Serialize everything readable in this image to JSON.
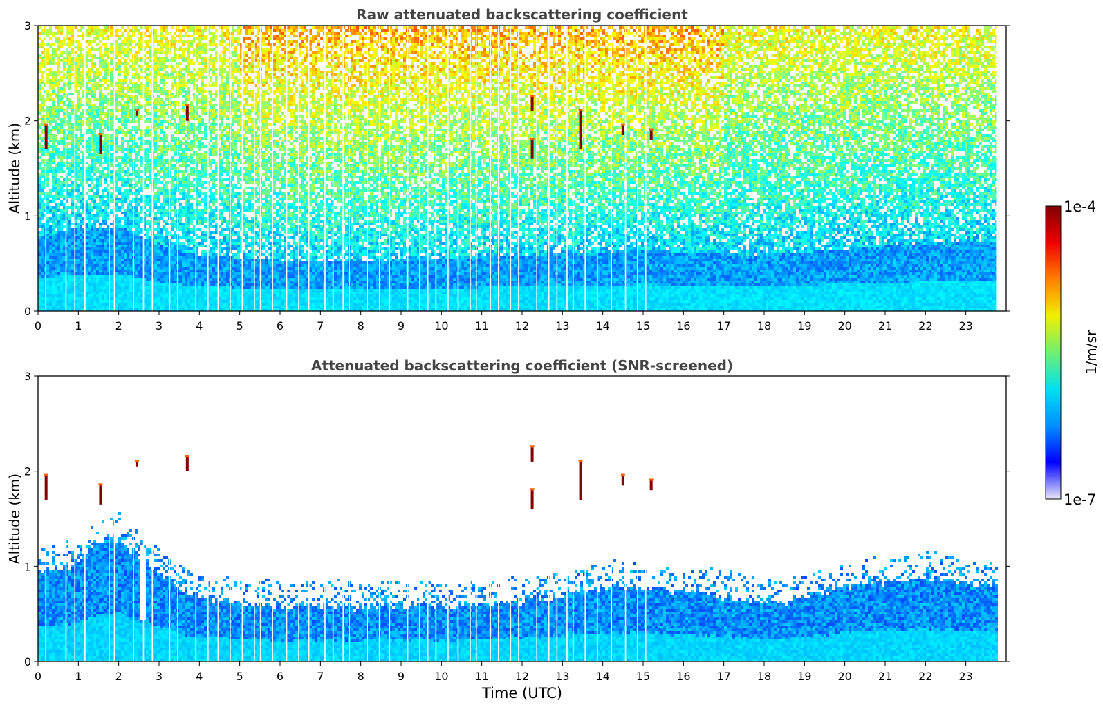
{
  "chart_data": [
    {
      "type": "heatmap",
      "title": "Raw attenuated backscattering coefficient",
      "xlabel": "",
      "ylabel": "Altitude (km)",
      "xlim": [
        0,
        24
      ],
      "ylim": [
        0,
        3
      ],
      "x_ticks": [
        "0",
        "1",
        "2",
        "3",
        "4",
        "5",
        "6",
        "7",
        "8",
        "9",
        "10",
        "11",
        "12",
        "13",
        "14",
        "15",
        "16",
        "17",
        "18",
        "19",
        "20",
        "21",
        "22",
        "23"
      ],
      "y_ticks": [
        "0",
        "1",
        "2",
        "3"
      ],
      "data_end_hour": 23.75,
      "variable": "attenuated backscatter",
      "colormap": "jet",
      "color_scale": "log",
      "color_range": [
        1e-07,
        0.0001
      ],
      "structure": [
        {
          "feature": "boundary layer aerosol",
          "top_km_by_hour": [
            [
              0,
              0.8
            ],
            [
              1,
              0.9
            ],
            [
              2,
              0.9
            ],
            [
              3,
              0.7
            ],
            [
              4,
              0.6
            ],
            [
              6,
              0.55
            ],
            [
              9,
              0.55
            ],
            [
              12,
              0.6
            ],
            [
              15,
              0.65
            ],
            [
              18,
              0.6
            ],
            [
              21,
              0.7
            ],
            [
              23.75,
              0.75
            ]
          ]
        },
        {
          "feature": "noisy background",
          "range_km": [
            1.0,
            3.0
          ]
        }
      ],
      "cloud_features": [
        {
          "time_h": 0.2,
          "alt_km": [
            1.7,
            1.95
          ]
        },
        {
          "time_h": 1.55,
          "alt_km": [
            1.65,
            1.85
          ]
        },
        {
          "time_h": 2.45,
          "alt_km": [
            2.05,
            2.1
          ]
        },
        {
          "time_h": 3.7,
          "alt_km": [
            2.0,
            2.15
          ]
        },
        {
          "time_h": 12.25,
          "alt_km": [
            1.6,
            1.8
          ]
        },
        {
          "time_h": 12.25,
          "alt_km": [
            2.1,
            2.25
          ]
        },
        {
          "time_h": 13.45,
          "alt_km": [
            1.7,
            2.1
          ]
        },
        {
          "time_h": 14.5,
          "alt_km": [
            1.85,
            1.95
          ]
        },
        {
          "time_h": 15.2,
          "alt_km": [
            1.8,
            1.9
          ]
        }
      ],
      "missing_profiles_h": [
        0.18,
        0.68,
        0.9,
        1.15,
        1.75,
        1.88,
        2.35,
        2.6,
        2.82,
        3.25,
        3.45,
        3.9,
        4.2,
        4.45,
        4.75,
        5.05,
        5.35,
        5.5,
        5.8,
        6.15,
        6.45,
        6.7,
        7.1,
        7.3,
        7.55,
        7.7,
        8.15,
        8.45,
        8.7,
        9.15,
        9.45,
        9.65,
        9.85,
        10.15,
        10.4,
        10.7,
        10.85,
        11.2,
        11.4,
        11.7,
        11.9,
        12.35,
        12.65,
        12.85,
        13.1,
        13.25,
        13.55,
        13.85,
        14.2,
        14.55,
        14.85,
        15.05
      ]
    },
    {
      "type": "heatmap",
      "title": "Attenuated backscattering coefficient (SNR-screened)",
      "xlabel": "Time (UTC)",
      "ylabel": "Altitude (km)",
      "xlim": [
        0,
        24
      ],
      "ylim": [
        0,
        3
      ],
      "x_ticks": [
        "0",
        "1",
        "2",
        "3",
        "4",
        "5",
        "6",
        "7",
        "8",
        "9",
        "10",
        "11",
        "12",
        "13",
        "14",
        "15",
        "16",
        "17",
        "18",
        "19",
        "20",
        "21",
        "22",
        "23"
      ],
      "y_ticks": [
        "0",
        "1",
        "2",
        "3"
      ],
      "colormap": "jet",
      "color_scale": "log",
      "color_range": [
        1e-07,
        0.0001
      ],
      "screened_layer_top_km_by_hour": [
        [
          0,
          0.95
        ],
        [
          0.5,
          1.0
        ],
        [
          1,
          1.05
        ],
        [
          1.5,
          1.25
        ],
        [
          2,
          1.3
        ],
        [
          2.5,
          1.1
        ],
        [
          3,
          0.95
        ],
        [
          3.5,
          0.75
        ],
        [
          4,
          0.7
        ],
        [
          5,
          0.62
        ],
        [
          6,
          0.6
        ],
        [
          7,
          0.6
        ],
        [
          8,
          0.58
        ],
        [
          9,
          0.6
        ],
        [
          10,
          0.6
        ],
        [
          11,
          0.62
        ],
        [
          12,
          0.65
        ],
        [
          13,
          0.72
        ],
        [
          14,
          0.8
        ],
        [
          15,
          0.78
        ],
        [
          16,
          0.75
        ],
        [
          17,
          0.7
        ],
        [
          18,
          0.6
        ],
        [
          18.5,
          0.62
        ],
        [
          19,
          0.7
        ],
        [
          20,
          0.8
        ],
        [
          21,
          0.85
        ],
        [
          22,
          0.9
        ],
        [
          23,
          0.85
        ],
        [
          23.75,
          0.8
        ]
      ],
      "gaps": [
        {
          "time_h": 2.55,
          "alt_km": [
            0.45,
            1.1
          ]
        }
      ],
      "cloud_features": [
        {
          "time_h": 0.2,
          "alt_km": [
            1.7,
            1.95
          ]
        },
        {
          "time_h": 1.55,
          "alt_km": [
            1.65,
            1.85
          ]
        },
        {
          "time_h": 2.45,
          "alt_km": [
            2.05,
            2.1
          ]
        },
        {
          "time_h": 3.7,
          "alt_km": [
            2.0,
            2.15
          ]
        },
        {
          "time_h": 12.25,
          "alt_km": [
            1.6,
            1.8
          ]
        },
        {
          "time_h": 12.25,
          "alt_km": [
            2.1,
            2.25
          ]
        },
        {
          "time_h": 13.45,
          "alt_km": [
            1.7,
            2.1
          ]
        },
        {
          "time_h": 14.5,
          "alt_km": [
            1.85,
            1.95
          ]
        },
        {
          "time_h": 15.2,
          "alt_km": [
            1.8,
            1.9
          ]
        }
      ]
    }
  ],
  "colorbar": {
    "label": "1/m/sr",
    "max_label": "1e-4",
    "min_label": "1e-7",
    "stops": [
      "#e8e8f8",
      "#0000ff",
      "#0090ff",
      "#00e0f0",
      "#70f070",
      "#f0f000",
      "#ff8000",
      "#f00000",
      "#800000"
    ]
  },
  "colors": {
    "background_noise": "#ffffff",
    "axis": "#000000",
    "title": "#444444"
  }
}
